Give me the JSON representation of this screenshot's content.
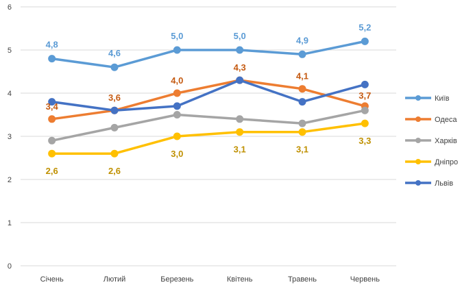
{
  "chart_data": {
    "type": "line",
    "title": "",
    "xlabel": "",
    "ylabel": "",
    "ylim": [
      0,
      6
    ],
    "yticks": [
      "0",
      "1",
      "2",
      "3",
      "4",
      "5",
      "6"
    ],
    "categories": [
      "Січень",
      "Лютий",
      "Березень",
      "Квітень",
      "Травень",
      "Червень"
    ],
    "grid": true,
    "legend_position": "right",
    "series": [
      {
        "name": "Київ",
        "color": "#5b9bd5",
        "values": [
          4.8,
          4.6,
          5.0,
          5.0,
          4.9,
          5.2
        ],
        "labels": [
          "4,8",
          "4,6",
          "5,0",
          "5,0",
          "4,9",
          "5,2"
        ],
        "label_color": "#5b9bd5"
      },
      {
        "name": "Одеса",
        "color": "#ed7d31",
        "values": [
          3.4,
          3.6,
          4.0,
          4.3,
          4.1,
          3.7
        ],
        "labels": [
          "3,4",
          "3,6",
          "4,0",
          "4,3",
          "4,1",
          "3,7"
        ],
        "label_color": "#c55a11"
      },
      {
        "name": "Харків",
        "color": "#a5a5a5",
        "values": [
          2.9,
          3.2,
          3.5,
          3.4,
          3.3,
          3.6
        ]
      },
      {
        "name": "Дніпро",
        "color": "#ffc000",
        "values": [
          2.6,
          2.6,
          3.0,
          3.1,
          3.1,
          3.3
        ],
        "labels": [
          "2,6",
          "2,6",
          "3,0",
          "3,1",
          "3,1",
          "3,3"
        ],
        "label_color": "#bf9000"
      },
      {
        "name": "Львів",
        "color": "#4472c4",
        "values": [
          3.8,
          3.6,
          3.7,
          4.3,
          3.8,
          4.2
        ]
      }
    ]
  }
}
